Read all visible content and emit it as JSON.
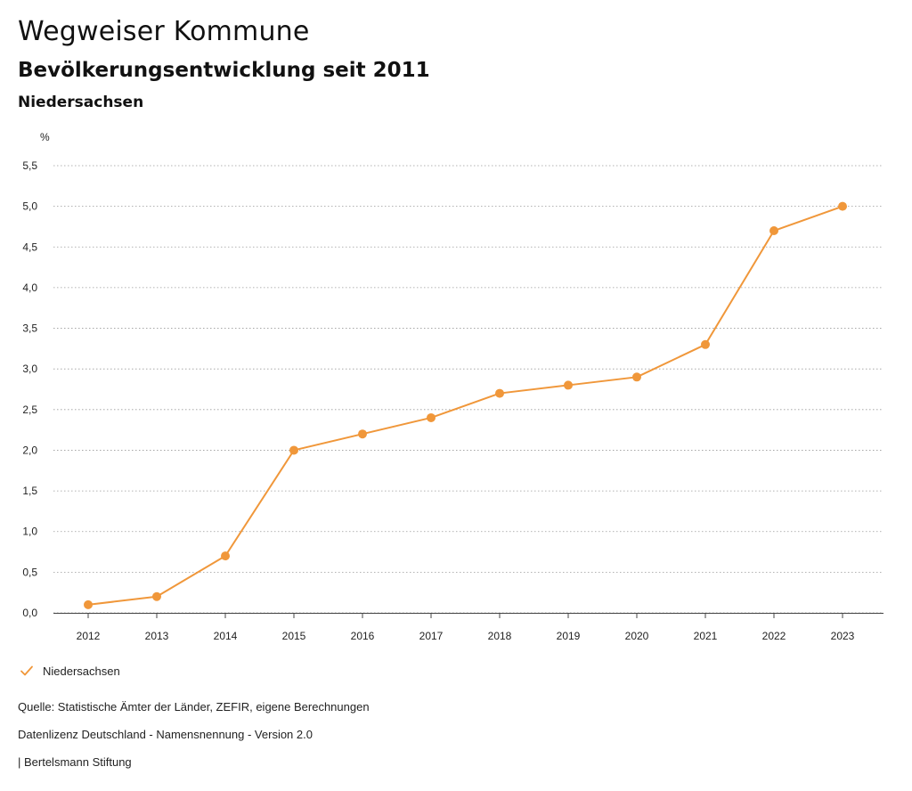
{
  "header": {
    "title": "Wegweiser Kommune",
    "subtitle": "Bevölkerungsentwicklung seit 2011",
    "region": "Niedersachsen"
  },
  "chart_data": {
    "type": "line",
    "title": "Bevölkerungsentwicklung seit 2011",
    "xlabel": "",
    "ylabel": "%",
    "ylim": [
      0,
      5.5
    ],
    "y_ticks": [
      "0,0",
      "0,5",
      "1,0",
      "1,5",
      "2,0",
      "2,5",
      "3,0",
      "3,5",
      "4,0",
      "4,5",
      "5,0",
      "5,5"
    ],
    "grid": true,
    "legend_position": "bottom-left",
    "categories": [
      "2012",
      "2013",
      "2014",
      "2015",
      "2016",
      "2017",
      "2018",
      "2019",
      "2020",
      "2021",
      "2022",
      "2023"
    ],
    "series": [
      {
        "name": "Niedersachsen",
        "color": "#f0973a",
        "values": [
          0.1,
          0.2,
          0.7,
          2.0,
          2.2,
          2.4,
          2.7,
          2.8,
          2.9,
          3.3,
          4.7,
          5.0
        ]
      }
    ]
  },
  "legend": {
    "label": "Niedersachsen",
    "icon": "check-icon"
  },
  "footer": {
    "source": "Quelle: Statistische Ämter der Länder, ZEFIR, eigene Berechnungen",
    "license": "Datenlizenz Deutschland - Namensnennung - Version 2.0",
    "publisher": "| Bertelsmann Stiftung"
  }
}
